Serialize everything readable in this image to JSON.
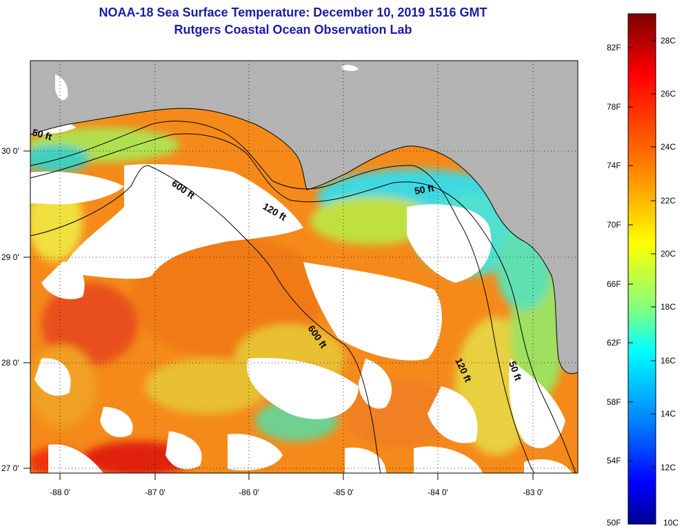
{
  "title": {
    "line1": "NOAA-18 Sea Surface Temperature:  December 10, 2019 1516 GMT",
    "line2": "Rutgers Coastal Ocean Observation Lab"
  },
  "map": {
    "lon_ticks": [
      "-88 0'",
      "-87 0'",
      "-86 0'",
      "-85 0'",
      "-84 0'",
      "-83 0'"
    ],
    "lat_ticks": [
      "30 0'",
      "29 0'",
      "28 0'",
      "27 0'"
    ],
    "contour_labels": [
      "50 ft",
      "600 ft",
      "120 ft",
      "50 ft",
      "600 ft",
      "120 ft",
      "50 ft"
    ]
  },
  "colorbar": {
    "fahrenheit_labels": [
      "82F",
      "78F",
      "74F",
      "70F",
      "66F",
      "62F",
      "58F",
      "54F",
      "50F"
    ],
    "celsius_labels": [
      "28C",
      "26C",
      "24C",
      "22C",
      "20C",
      "18C",
      "16C",
      "14C",
      "12C",
      "10C"
    ],
    "colors": [
      "#7f0000",
      "#ff0000",
      "#ff8000",
      "#ffff00",
      "#80ff80",
      "#00ffff",
      "#0080ff",
      "#0000ff",
      "#00008f"
    ]
  },
  "colors": {
    "land": "#b3b3b3",
    "clouds": "#ffffff",
    "title": "#1a1aa8"
  }
}
